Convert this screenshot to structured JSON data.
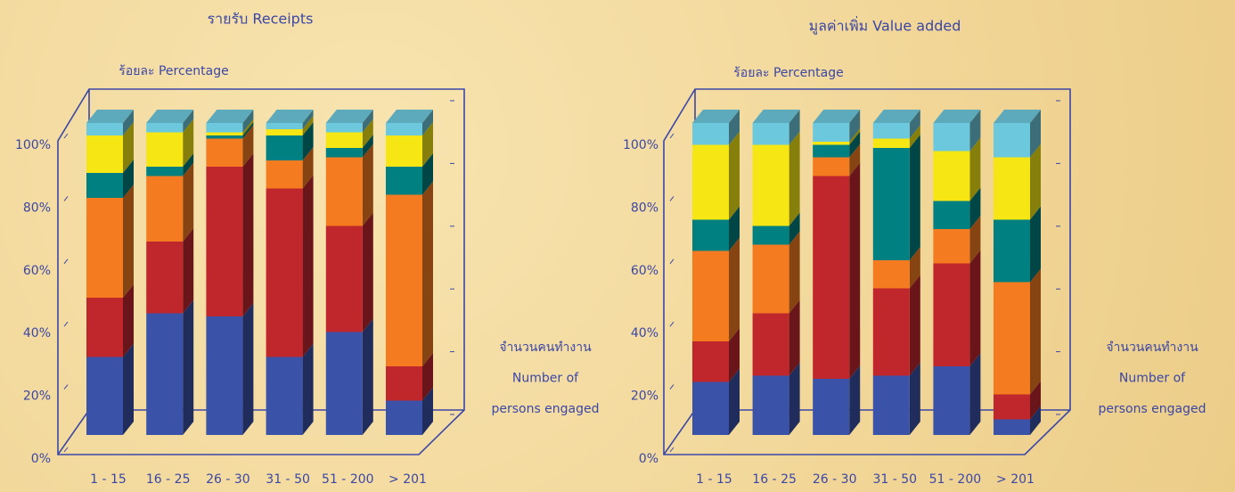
{
  "chart_data": [
    {
      "type": "bar",
      "stacked": true,
      "title": "รายรับ   Receipts",
      "ylabel": "ร้อยละ  Percentage",
      "xlabel": [
        "จำนวนคนทำงาน",
        "Number of",
        "persons engaged"
      ],
      "categories": [
        "1 - 15",
        "16 - 25",
        "26 - 30",
        "31 - 50",
        "51 - 200",
        "> 201"
      ],
      "ylim": [
        0,
        100
      ],
      "yticks": [
        {
          "value": 0,
          "label": "0%"
        },
        {
          "value": 20,
          "label": "20%"
        },
        {
          "value": 40,
          "label": "40%"
        },
        {
          "value": 60,
          "label": "60%"
        },
        {
          "value": 80,
          "label": "80%"
        },
        {
          "value": 100,
          "label": "100%"
        }
      ],
      "series": [
        {
          "color": "#3a52a8",
          "values": [
            25,
            39,
            38,
            25,
            33,
            11
          ]
        },
        {
          "color": "#c0272d",
          "values": [
            19,
            23,
            48,
            54,
            34,
            11
          ]
        },
        {
          "color": "#f47b20",
          "values": [
            32,
            21,
            9,
            9,
            22,
            55
          ]
        },
        {
          "color": "#008080",
          "values": [
            8,
            3,
            1,
            8,
            3,
            9
          ]
        },
        {
          "color": "#f5e614",
          "values": [
            12,
            11,
            1,
            2,
            5,
            10
          ]
        },
        {
          "color": "#6cc8dc",
          "values": [
            4,
            3,
            3,
            2,
            3,
            4
          ]
        }
      ]
    },
    {
      "type": "bar",
      "stacked": true,
      "title": "มูลค่าเพิ่ม   Value added",
      "ylabel": "ร้อยละ  Percentage",
      "xlabel": [
        "จำนวนคนทำงาน",
        "Number of",
        "persons engaged"
      ],
      "categories": [
        "1 - 15",
        "16 - 25",
        "26 - 30",
        "31 - 50",
        "51 - 200",
        "> 201"
      ],
      "ylim": [
        0,
        100
      ],
      "yticks": [
        {
          "value": 0,
          "label": "0%"
        },
        {
          "value": 20,
          "label": "20%"
        },
        {
          "value": 40,
          "label": "40%"
        },
        {
          "value": 60,
          "label": "60%"
        },
        {
          "value": 80,
          "label": "80%"
        },
        {
          "value": 100,
          "label": "100%"
        }
      ],
      "series": [
        {
          "color": "#3a52a8",
          "values": [
            17,
            19,
            18,
            19,
            22,
            5
          ]
        },
        {
          "color": "#c0272d",
          "values": [
            13,
            20,
            65,
            28,
            33,
            8
          ]
        },
        {
          "color": "#f47b20",
          "values": [
            29,
            22,
            6,
            9,
            11,
            36
          ]
        },
        {
          "color": "#008080",
          "values": [
            10,
            6,
            4,
            36,
            9,
            20
          ]
        },
        {
          "color": "#f5e614",
          "values": [
            24,
            26,
            1,
            3,
            16,
            20
          ]
        },
        {
          "color": "#6cc8dc",
          "values": [
            7,
            7,
            6,
            5,
            9,
            11
          ]
        }
      ]
    }
  ]
}
